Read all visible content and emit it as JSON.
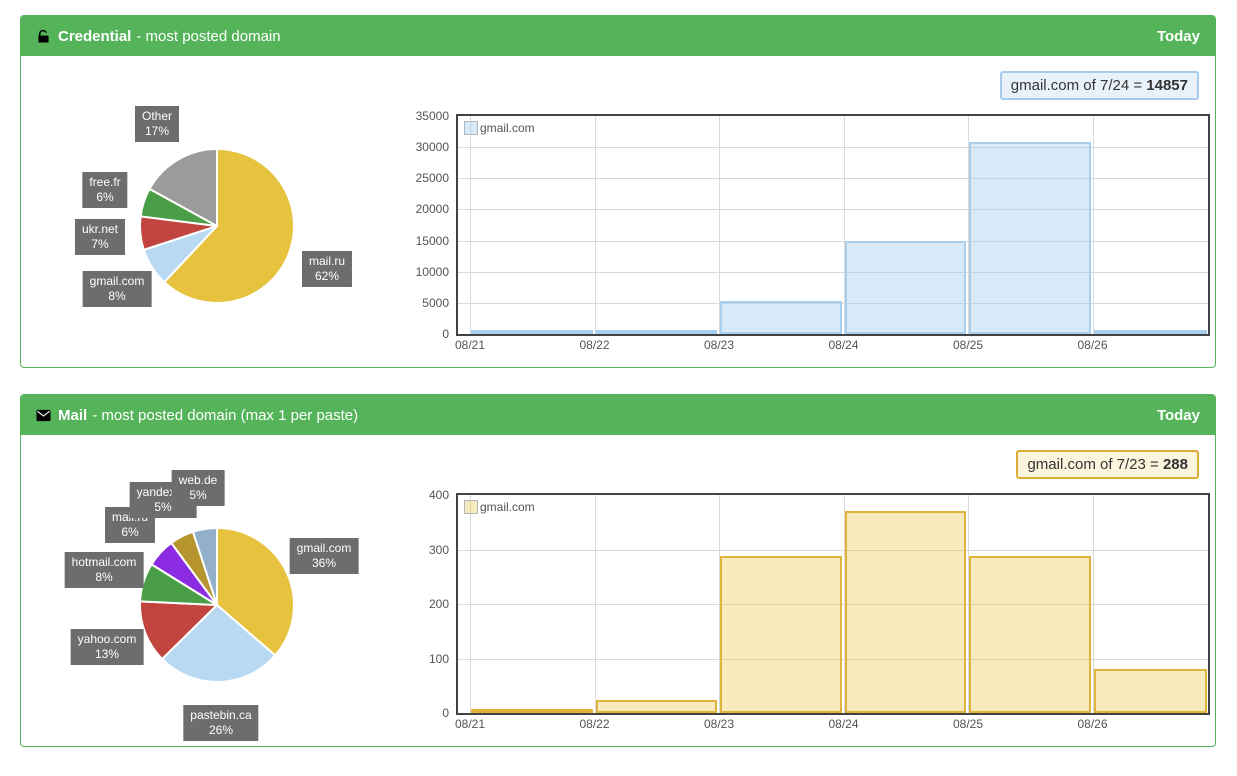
{
  "panels": [
    {
      "header": {
        "icon": "unlock-icon",
        "title": "Credential",
        "subtitle": "- most posted domain",
        "badge": "Today",
        "color": "#55b45a"
      },
      "tooltip": {
        "text": "gmail.com of 7/24 =",
        "value": "14857",
        "border": "#a6cbed",
        "bg": "#e9f2fb"
      }
    },
    {
      "header": {
        "icon": "mail-icon",
        "title": "Mail",
        "subtitle": "- most posted domain (max 1 per paste)",
        "badge": "Today",
        "color": "#55b45a"
      },
      "tooltip": {
        "text": "gmail.com of 7/23 =",
        "value": "288",
        "border": "#ddae35",
        "bg": "#fcf5dd"
      }
    }
  ],
  "chart_data": [
    {
      "type": "pie",
      "panel": "credential",
      "slices": [
        {
          "label": "mail.ru",
          "value": 62,
          "color": "#e6c23f"
        },
        {
          "label": "gmail.com",
          "value": 8,
          "color": "#b9d9f2"
        },
        {
          "label": "ukr.net",
          "value": 7,
          "color": "#c2443f"
        },
        {
          "label": "free.fr",
          "value": 6,
          "color": "#4a9e47"
        },
        {
          "label": "Other",
          "value": 17,
          "color": "#9b9b9b"
        }
      ],
      "label_format": "{label} {value}%"
    },
    {
      "type": "bar",
      "panel": "credential",
      "categories": [
        "08/21",
        "08/22",
        "08/23",
        "08/24",
        "08/25",
        "08/26"
      ],
      "series": [
        {
          "name": "gmail.com",
          "values": [
            250,
            450,
            5300,
            14857,
            30800,
            300
          ]
        }
      ],
      "ylim": [
        0,
        35000
      ],
      "yticks": [
        0,
        5000,
        10000,
        15000,
        20000,
        25000,
        30000,
        35000
      ],
      "grid": true,
      "legend_position": "top-left",
      "bar_fill": "rgba(169,207,238,0.45)",
      "bar_stroke": "#a9cfee"
    },
    {
      "type": "pie",
      "panel": "mail",
      "slices": [
        {
          "label": "gmail.com",
          "value": 36,
          "color": "#e6c23f"
        },
        {
          "label": "pastebin.ca",
          "value": 26,
          "color": "#b9d9f2"
        },
        {
          "label": "yahoo.com",
          "value": 13,
          "color": "#c2443f"
        },
        {
          "label": "hotmail.com",
          "value": 8,
          "color": "#4a9e47"
        },
        {
          "label": "mail.ru",
          "value": 6,
          "color": "#8b2be2"
        },
        {
          "label": "yandex.ru",
          "value": 5,
          "color": "#b6952e"
        },
        {
          "label": "web.de",
          "value": 5,
          "color": "#92b0c9"
        }
      ],
      "label_format": "{label} {value}%"
    },
    {
      "type": "bar",
      "panel": "mail",
      "categories": [
        "08/21",
        "08/22",
        "08/23",
        "08/24",
        "08/25",
        "08/26"
      ],
      "series": [
        {
          "name": "gmail.com",
          "values": [
            3,
            23,
            288,
            370,
            288,
            80
          ]
        }
      ],
      "ylim": [
        0,
        400
      ],
      "yticks": [
        0,
        100,
        200,
        300,
        400
      ],
      "grid": true,
      "legend_position": "top-left",
      "bar_fill": "rgba(232,194,64,0.35)",
      "bar_stroke": "#e0b33c"
    }
  ]
}
